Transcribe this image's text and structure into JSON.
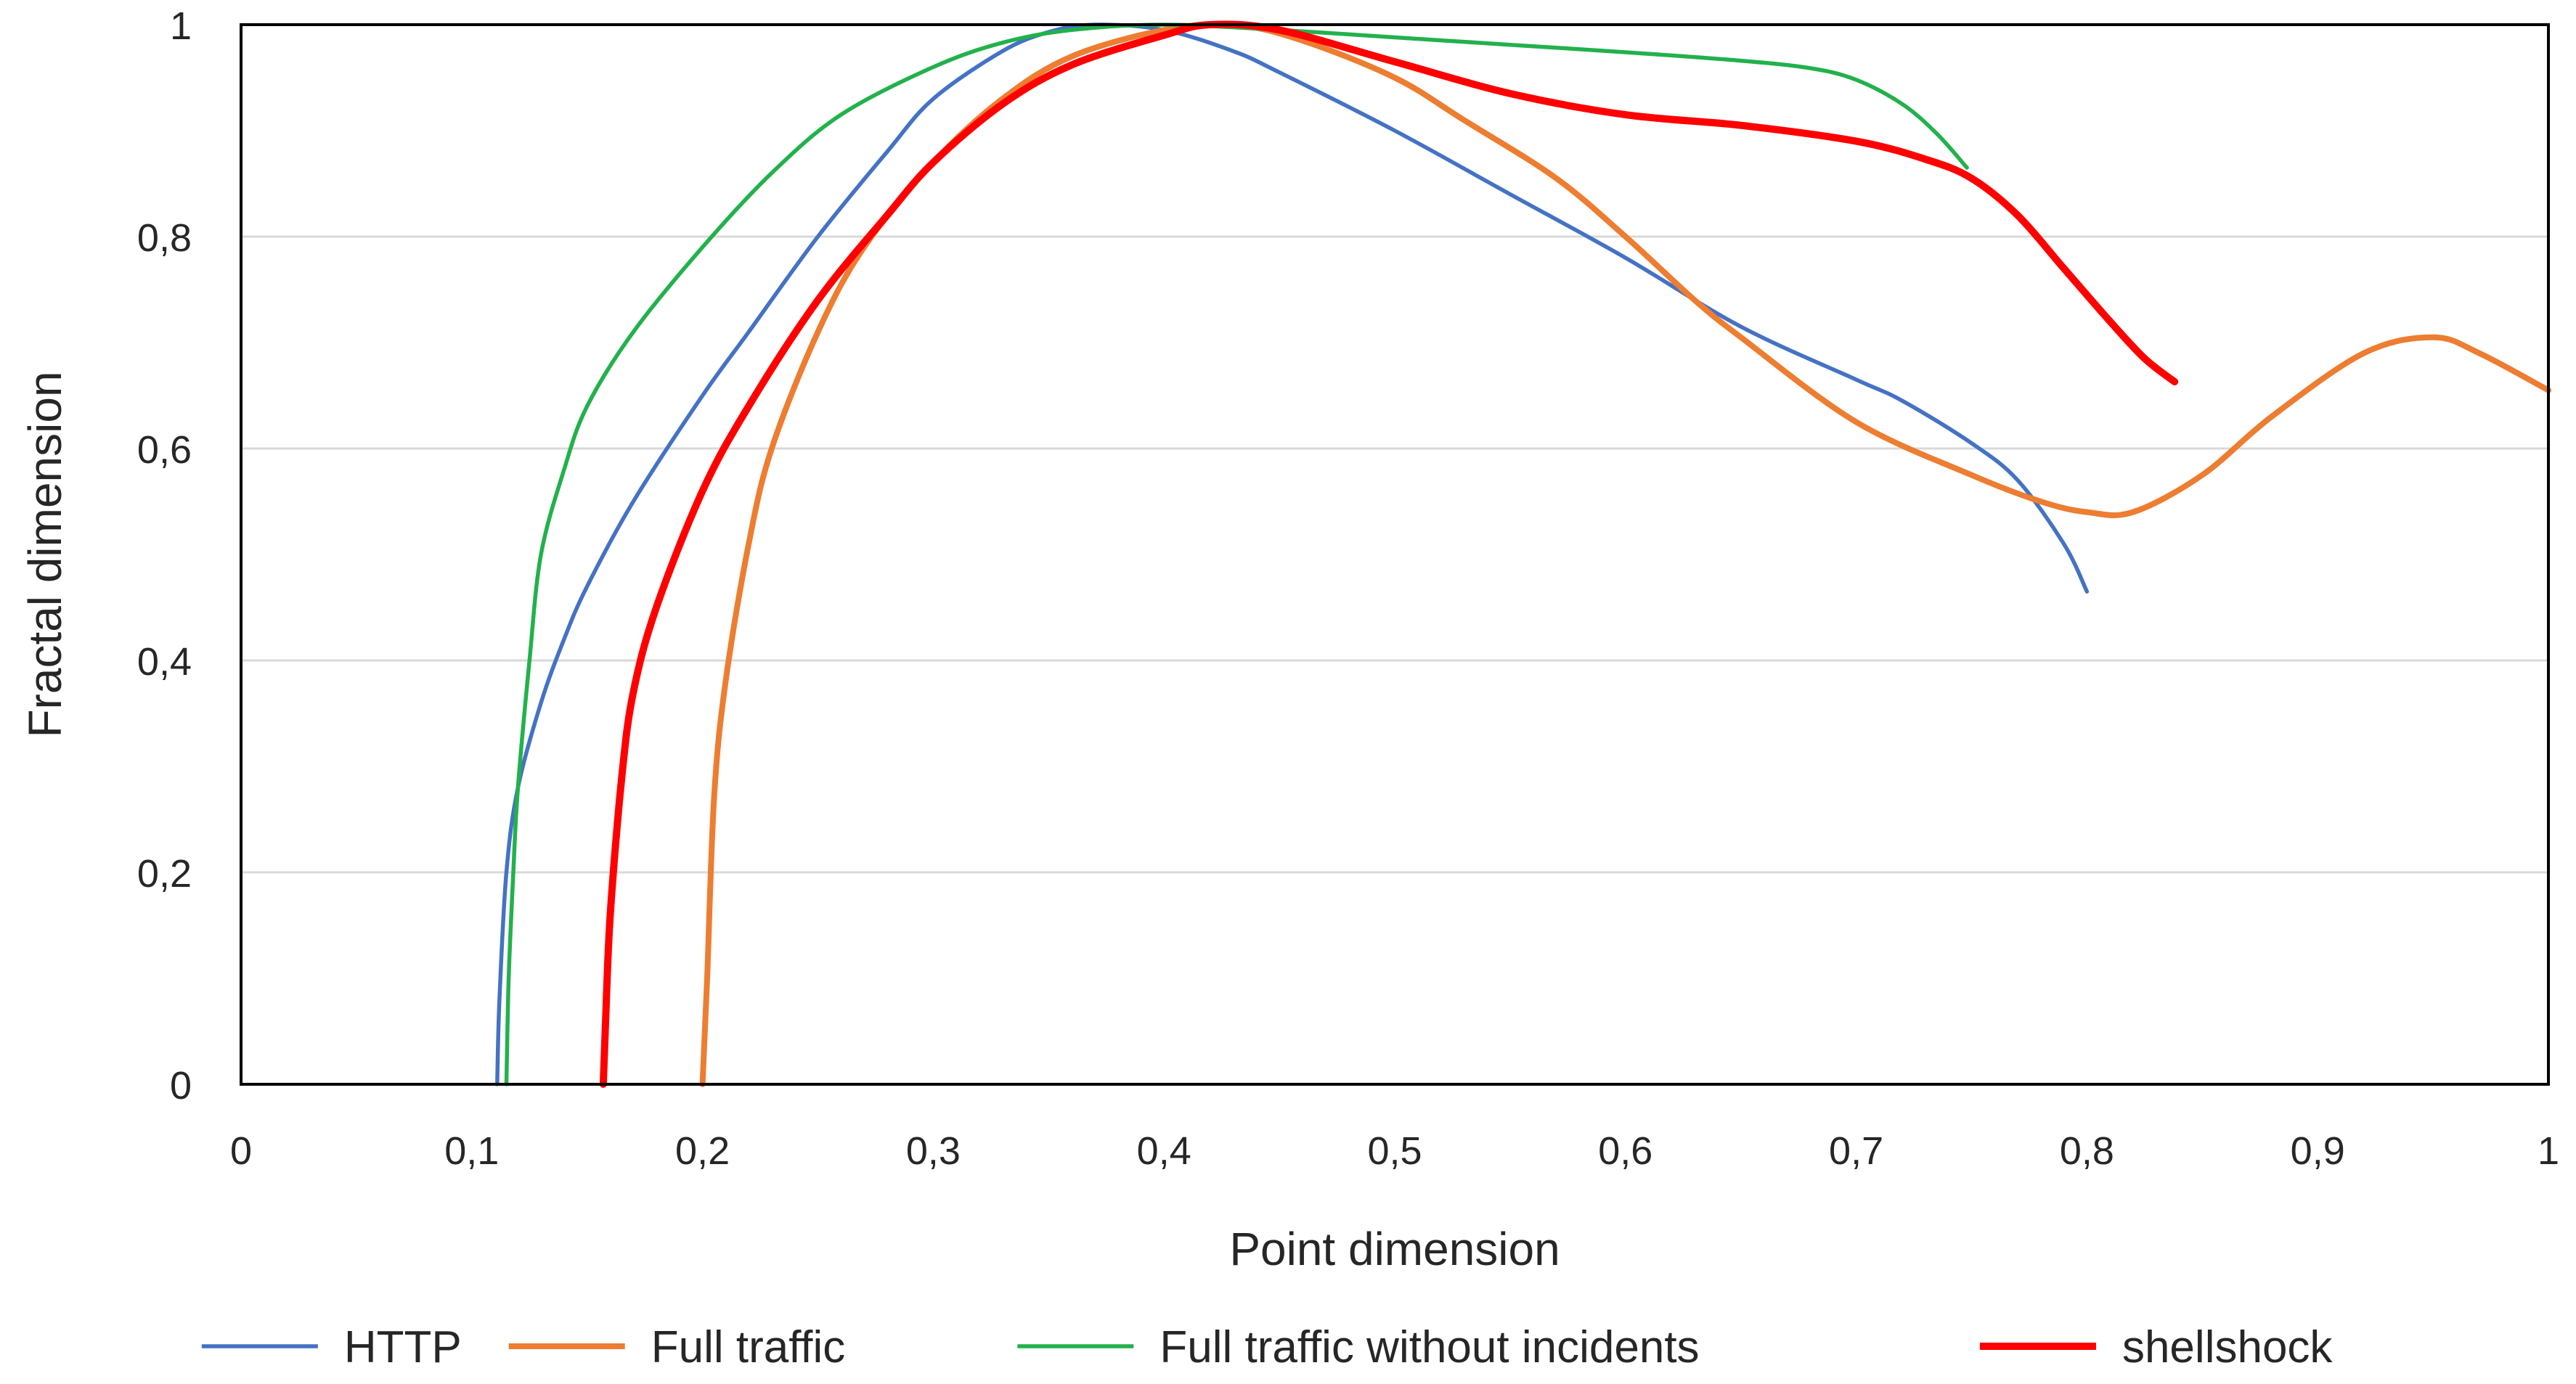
{
  "chart_data": {
    "type": "line",
    "title": "",
    "xlabel": "Point dimension",
    "ylabel": "Fractal dimension",
    "xlim": [
      0,
      1
    ],
    "ylim": [
      0,
      1
    ],
    "x_ticks": [
      0,
      0.1,
      0.2,
      0.3,
      0.4,
      0.5,
      0.6,
      0.7,
      0.8,
      0.9,
      1
    ],
    "x_tick_labels": [
      "0",
      "0,1",
      "0,2",
      "0,3",
      "0,4",
      "0,5",
      "0,6",
      "0,7",
      "0,8",
      "0,9",
      "1"
    ],
    "y_ticks": [
      0,
      0.2,
      0.4,
      0.6,
      0.8,
      1
    ],
    "y_tick_labels": [
      "0",
      "0,2",
      "0,4",
      "0,6",
      "0,8",
      "1"
    ],
    "grid": "horizontal",
    "legend_position": "bottom",
    "series": [
      {
        "name": "HTTP",
        "color": "#4472C4",
        "points": [
          [
            0.111,
            0
          ],
          [
            0.112,
            0.08
          ],
          [
            0.115,
            0.2
          ],
          [
            0.12,
            0.28
          ],
          [
            0.13,
            0.36
          ],
          [
            0.14,
            0.42
          ],
          [
            0.15,
            0.47
          ],
          [
            0.17,
            0.55
          ],
          [
            0.2,
            0.65
          ],
          [
            0.22,
            0.71
          ],
          [
            0.25,
            0.8
          ],
          [
            0.28,
            0.88
          ],
          [
            0.3,
            0.93
          ],
          [
            0.33,
            0.975
          ],
          [
            0.35,
            0.993
          ],
          [
            0.37,
            1.0
          ],
          [
            0.4,
            0.995
          ],
          [
            0.43,
            0.975
          ],
          [
            0.45,
            0.955
          ],
          [
            0.5,
            0.9
          ],
          [
            0.55,
            0.84
          ],
          [
            0.6,
            0.78
          ],
          [
            0.65,
            0.715
          ],
          [
            0.7,
            0.665
          ],
          [
            0.72,
            0.645
          ],
          [
            0.75,
            0.605
          ],
          [
            0.77,
            0.57
          ],
          [
            0.79,
            0.51
          ],
          [
            0.8,
            0.465
          ]
        ]
      },
      {
        "name": "Full traffic",
        "color": "#ED7D31",
        "points": [
          [
            0.2,
            0
          ],
          [
            0.202,
            0.1
          ],
          [
            0.205,
            0.27
          ],
          [
            0.21,
            0.38
          ],
          [
            0.22,
            0.51
          ],
          [
            0.23,
            0.6
          ],
          [
            0.25,
            0.71
          ],
          [
            0.27,
            0.79
          ],
          [
            0.3,
            0.87
          ],
          [
            0.33,
            0.93
          ],
          [
            0.36,
            0.97
          ],
          [
            0.4,
            0.995
          ],
          [
            0.43,
            1.0
          ],
          [
            0.46,
            0.985
          ],
          [
            0.5,
            0.95
          ],
          [
            0.53,
            0.91
          ],
          [
            0.57,
            0.855
          ],
          [
            0.6,
            0.8
          ],
          [
            0.63,
            0.74
          ],
          [
            0.65,
            0.705
          ],
          [
            0.7,
            0.625
          ],
          [
            0.75,
            0.575
          ],
          [
            0.78,
            0.55
          ],
          [
            0.8,
            0.54
          ],
          [
            0.82,
            0.54
          ],
          [
            0.85,
            0.575
          ],
          [
            0.88,
            0.63
          ],
          [
            0.92,
            0.69
          ],
          [
            0.95,
            0.705
          ],
          [
            0.97,
            0.69
          ],
          [
            1.0,
            0.655
          ]
        ]
      },
      {
        "name": "Full traffic without incidents",
        "color": "#22B14C",
        "points": [
          [
            0.115,
            0
          ],
          [
            0.116,
            0.1
          ],
          [
            0.118,
            0.2
          ],
          [
            0.12,
            0.28
          ],
          [
            0.125,
            0.4
          ],
          [
            0.13,
            0.5
          ],
          [
            0.14,
            0.58
          ],
          [
            0.15,
            0.64
          ],
          [
            0.17,
            0.71
          ],
          [
            0.2,
            0.79
          ],
          [
            0.23,
            0.86
          ],
          [
            0.26,
            0.915
          ],
          [
            0.3,
            0.96
          ],
          [
            0.33,
            0.983
          ],
          [
            0.36,
            0.995
          ],
          [
            0.4,
            1.0
          ],
          [
            0.45,
            0.995
          ],
          [
            0.5,
            0.988
          ],
          [
            0.55,
            0.981
          ],
          [
            0.6,
            0.974
          ],
          [
            0.65,
            0.966
          ],
          [
            0.68,
            0.959
          ],
          [
            0.7,
            0.948
          ],
          [
            0.72,
            0.925
          ],
          [
            0.735,
            0.897
          ],
          [
            0.748,
            0.865
          ]
        ]
      },
      {
        "name": "shellshock",
        "color": "#FF0000",
        "points": [
          [
            0.157,
            0
          ],
          [
            0.158,
            0.06
          ],
          [
            0.16,
            0.16
          ],
          [
            0.165,
            0.29
          ],
          [
            0.17,
            0.37
          ],
          [
            0.18,
            0.45
          ],
          [
            0.2,
            0.56
          ],
          [
            0.22,
            0.64
          ],
          [
            0.25,
            0.74
          ],
          [
            0.28,
            0.82
          ],
          [
            0.3,
            0.87
          ],
          [
            0.33,
            0.925
          ],
          [
            0.36,
            0.962
          ],
          [
            0.4,
            0.99
          ],
          [
            0.42,
            1.0
          ],
          [
            0.45,
            0.995
          ],
          [
            0.5,
            0.965
          ],
          [
            0.55,
            0.935
          ],
          [
            0.6,
            0.915
          ],
          [
            0.65,
            0.905
          ],
          [
            0.7,
            0.89
          ],
          [
            0.73,
            0.873
          ],
          [
            0.75,
            0.855
          ],
          [
            0.77,
            0.82
          ],
          [
            0.79,
            0.77
          ],
          [
            0.81,
            0.72
          ],
          [
            0.825,
            0.685
          ],
          [
            0.838,
            0.663
          ]
        ]
      }
    ]
  }
}
